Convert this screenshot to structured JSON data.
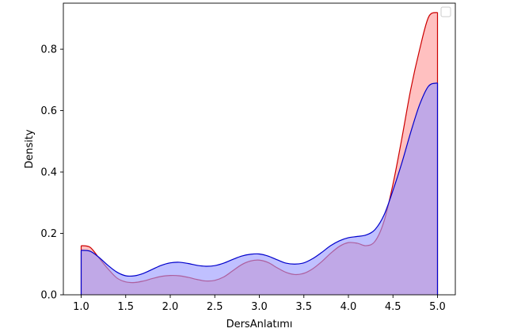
{
  "chart_data": {
    "type": "area",
    "title": "",
    "xlabel": "DersAnlatımı",
    "ylabel": "Density",
    "xlim": [
      0.8,
      5.2
    ],
    "ylim": [
      0,
      0.95
    ],
    "xticks": [
      "1.0",
      "1.5",
      "2.0",
      "2.5",
      "3.0",
      "3.5",
      "4.0",
      "4.5",
      "5.0"
    ],
    "yticks": [
      "0.0",
      "0.2",
      "0.4",
      "0.6",
      "0.8"
    ],
    "grid": false,
    "legend": {
      "placement": "top-right",
      "entries": []
    },
    "series": [
      {
        "color": "#cc0000",
        "fill": "#ff9999",
        "x": [
          1.0,
          1.1,
          1.2,
          1.3,
          1.4,
          1.5,
          1.6,
          1.7,
          1.8,
          1.9,
          2.0,
          2.1,
          2.2,
          2.3,
          2.4,
          2.5,
          2.6,
          2.7,
          2.8,
          2.9,
          3.0,
          3.1,
          3.2,
          3.3,
          3.4,
          3.5,
          3.6,
          3.7,
          3.8,
          3.9,
          4.0,
          4.1,
          4.2,
          4.3,
          4.4,
          4.5,
          4.6,
          4.7,
          4.8,
          4.9,
          5.0
        ],
        "y": [
          0.16,
          0.155,
          0.12,
          0.085,
          0.055,
          0.042,
          0.04,
          0.045,
          0.053,
          0.06,
          0.063,
          0.062,
          0.057,
          0.05,
          0.045,
          0.047,
          0.058,
          0.078,
          0.098,
          0.11,
          0.113,
          0.105,
          0.088,
          0.073,
          0.066,
          0.07,
          0.085,
          0.108,
          0.135,
          0.158,
          0.17,
          0.168,
          0.16,
          0.175,
          0.24,
          0.36,
          0.51,
          0.67,
          0.8,
          0.905,
          0.92
        ]
      },
      {
        "color": "#0000cc",
        "fill": "#9999ff",
        "x": [
          1.0,
          1.1,
          1.2,
          1.3,
          1.4,
          1.5,
          1.6,
          1.7,
          1.8,
          1.9,
          2.0,
          2.1,
          2.2,
          2.3,
          2.4,
          2.5,
          2.6,
          2.7,
          2.8,
          2.9,
          3.0,
          3.1,
          3.2,
          3.3,
          3.4,
          3.5,
          3.6,
          3.7,
          3.8,
          3.9,
          4.0,
          4.1,
          4.2,
          4.3,
          4.4,
          4.5,
          4.6,
          4.7,
          4.8,
          4.9,
          5.0
        ],
        "y": [
          0.145,
          0.142,
          0.122,
          0.096,
          0.074,
          0.062,
          0.062,
          0.07,
          0.083,
          0.096,
          0.104,
          0.106,
          0.102,
          0.096,
          0.093,
          0.095,
          0.103,
          0.115,
          0.126,
          0.132,
          0.133,
          0.126,
          0.114,
          0.103,
          0.1,
          0.104,
          0.118,
          0.138,
          0.16,
          0.176,
          0.186,
          0.19,
          0.195,
          0.213,
          0.26,
          0.34,
          0.43,
          0.53,
          0.62,
          0.68,
          0.69
        ]
      }
    ]
  }
}
